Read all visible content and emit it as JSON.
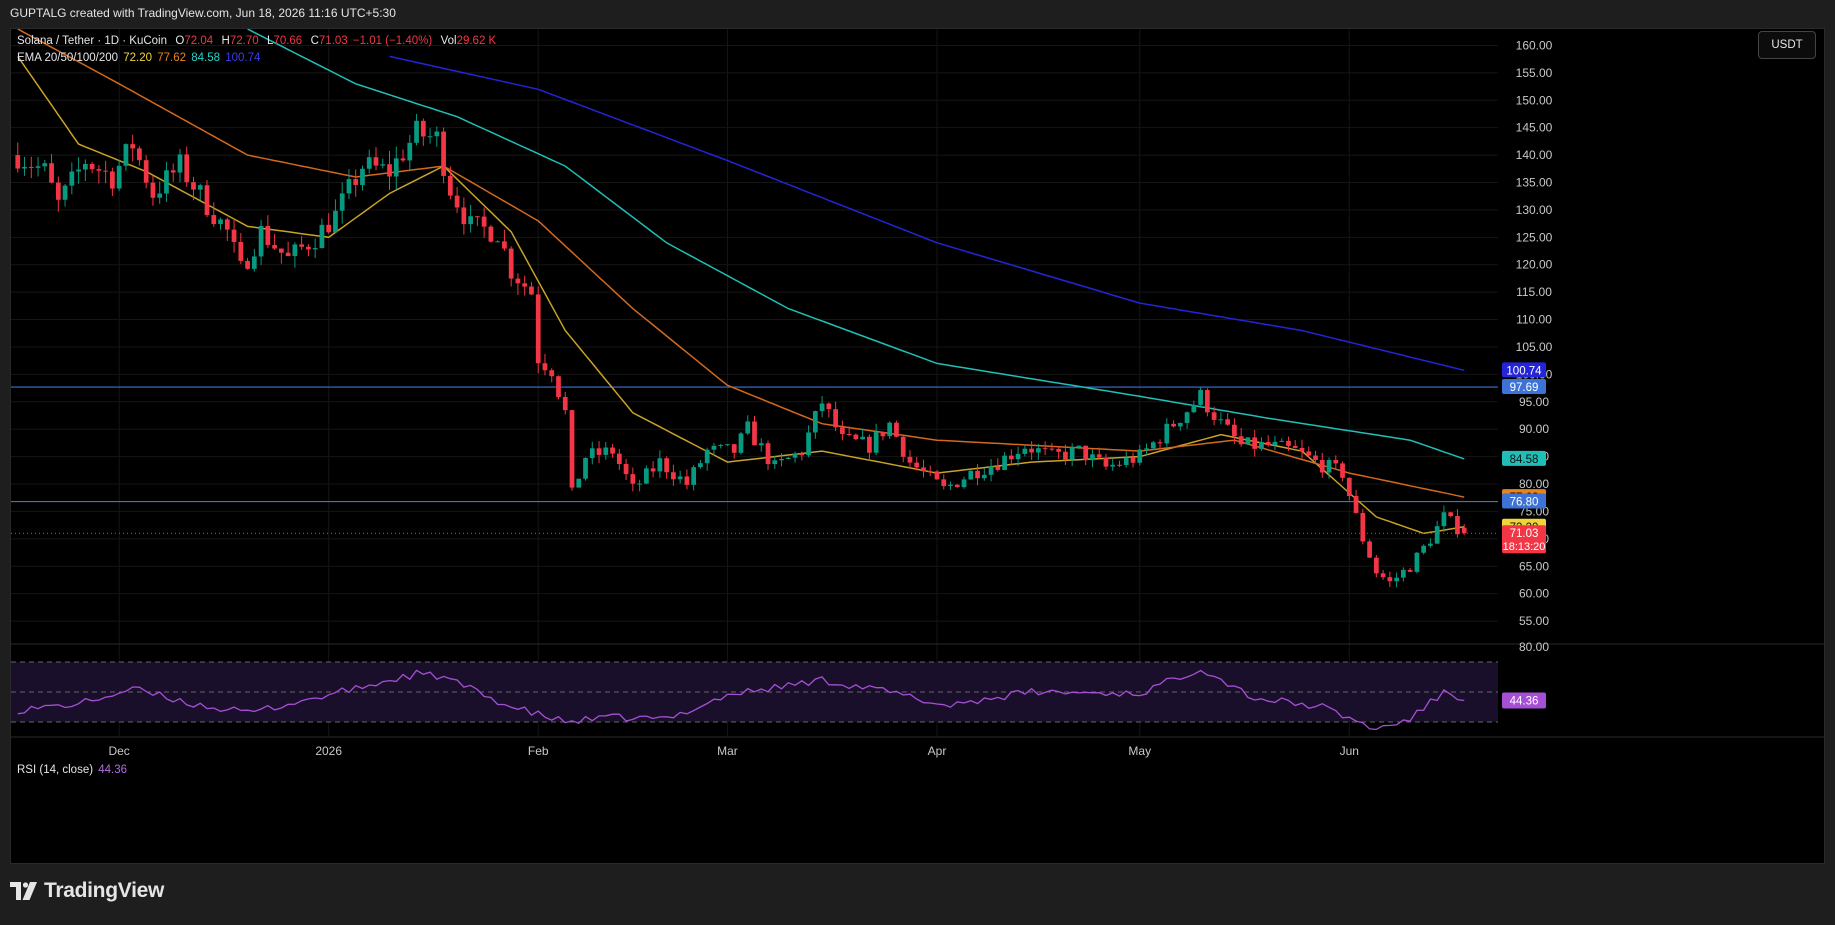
{
  "header": {
    "caption": "GUPTALG created with TradingView.com, Jun 18, 2026 11:16 UTC+5:30"
  },
  "legend": {
    "symbol": "Solana / Tether · 1D · KuCoin",
    "o_label": "O",
    "o_value": "72.04",
    "h_label": "H",
    "h_value": "72.70",
    "l_label": "L",
    "l_value": "70.66",
    "c_label": "C",
    "c_value": "71.03",
    "change": "−1.01 (−1.40%)",
    "vol_label": "Vol",
    "vol_value": "29.62 K",
    "ema_label": "EMA 20/50/100/200",
    "ema20": "72.20",
    "ema50": "77.62",
    "ema100": "84.58",
    "ema200": "100.74",
    "rsi_label": "RSI (14, close)",
    "rsi_value": "44.36"
  },
  "currency_button": "USDT",
  "footer": {
    "brand": "TradingView"
  },
  "colors": {
    "up": "#089981",
    "down": "#f23645",
    "ema20": "#c9a227",
    "ema50": "#d2691e",
    "ema100": "#1fbfb8",
    "ema200": "#2424d8",
    "hline": "#3d72d6",
    "rsi": "#a64fd6"
  },
  "chart_data": {
    "type": "candlestick",
    "symbol": "Solana / Tether",
    "interval": "1D",
    "exchange": "KuCoin",
    "ylim": [
      51,
      163
    ],
    "y_ticks": [
      55,
      60,
      65,
      70,
      75,
      80,
      85,
      90,
      95,
      100,
      105,
      110,
      115,
      120,
      125,
      130,
      135,
      140,
      145,
      150,
      155,
      160
    ],
    "x_range": [
      "2025-11-15",
      "2026-06-23"
    ],
    "x_ticks": [
      {
        "date": "2025-12-01",
        "label": "Dec"
      },
      {
        "date": "2026-01-01",
        "label": "2026"
      },
      {
        "date": "2026-02-01",
        "label": "Feb"
      },
      {
        "date": "2026-03-01",
        "label": "Mar"
      },
      {
        "date": "2026-04-01",
        "label": "Apr"
      },
      {
        "date": "2026-05-01",
        "label": "May"
      },
      {
        "date": "2026-06-01",
        "label": "Jun"
      }
    ],
    "close_anchors": [
      [
        "2025-11-16",
        140
      ],
      [
        "2025-11-20",
        137
      ],
      [
        "2025-11-22",
        131
      ],
      [
        "2025-11-26",
        139
      ],
      [
        "2025-11-30",
        136
      ],
      [
        "2025-12-03",
        142
      ],
      [
        "2025-12-06",
        133
      ],
      [
        "2025-12-10",
        138
      ],
      [
        "2025-12-14",
        131
      ],
      [
        "2025-12-17",
        126
      ],
      [
        "2025-12-19",
        119
      ],
      [
        "2025-12-22",
        126
      ],
      [
        "2025-12-26",
        121
      ],
      [
        "2025-12-30",
        125
      ],
      [
        "2026-01-02",
        129
      ],
      [
        "2026-01-06",
        138
      ],
      [
        "2026-01-10",
        137
      ],
      [
        "2026-01-14",
        144
      ],
      [
        "2026-01-17",
        143
      ],
      [
        "2026-01-19",
        134
      ],
      [
        "2026-01-22",
        127
      ],
      [
        "2026-01-26",
        126
      ],
      [
        "2026-01-28",
        119
      ],
      [
        "2026-01-31",
        115
      ],
      [
        "2026-02-01",
        103
      ],
      [
        "2026-02-03",
        101
      ],
      [
        "2026-02-05",
        93
      ],
      [
        "2026-02-06",
        78
      ],
      [
        "2026-02-08",
        85
      ],
      [
        "2026-02-12",
        86
      ],
      [
        "2026-02-15",
        79
      ],
      [
        "2026-02-19",
        84
      ],
      [
        "2026-02-23",
        80
      ],
      [
        "2026-02-26",
        86
      ],
      [
        "2026-03-02",
        86
      ],
      [
        "2026-03-04",
        90
      ],
      [
        "2026-03-08",
        83
      ],
      [
        "2026-03-12",
        86
      ],
      [
        "2026-03-15",
        95
      ],
      [
        "2026-03-18",
        88
      ],
      [
        "2026-03-22",
        87
      ],
      [
        "2026-03-25",
        91
      ],
      [
        "2026-03-28",
        84
      ],
      [
        "2026-04-02",
        79
      ],
      [
        "2026-04-06",
        82
      ],
      [
        "2026-04-10",
        84
      ],
      [
        "2026-04-14",
        87
      ],
      [
        "2026-04-18",
        85
      ],
      [
        "2026-04-22",
        86
      ],
      [
        "2026-04-26",
        83
      ],
      [
        "2026-05-01",
        85
      ],
      [
        "2026-05-06",
        91
      ],
      [
        "2026-05-10",
        96
      ],
      [
        "2026-05-13",
        91
      ],
      [
        "2026-05-16",
        87
      ],
      [
        "2026-05-20",
        87
      ],
      [
        "2026-05-24",
        86
      ],
      [
        "2026-05-27",
        84
      ],
      [
        "2026-05-31",
        82
      ],
      [
        "2026-06-03",
        70
      ],
      [
        "2026-06-05",
        64
      ],
      [
        "2026-06-07",
        62
      ],
      [
        "2026-06-10",
        65
      ],
      [
        "2026-06-13",
        70
      ],
      [
        "2026-06-15",
        74
      ],
      [
        "2026-06-17",
        72
      ],
      [
        "2026-06-18",
        71.03
      ]
    ],
    "ema_anchors": {
      "ema20": [
        [
          "2025-11-16",
          158
        ],
        [
          "2025-11-25",
          142
        ],
        [
          "2025-12-05",
          137
        ],
        [
          "2025-12-20",
          127
        ],
        [
          "2026-01-01",
          125
        ],
        [
          "2026-01-10",
          133
        ],
        [
          "2026-01-18",
          138
        ],
        [
          "2026-01-28",
          126
        ],
        [
          "2026-02-05",
          108
        ],
        [
          "2026-02-15",
          93
        ],
        [
          "2026-03-01",
          84
        ],
        [
          "2026-03-15",
          86
        ],
        [
          "2026-04-01",
          82
        ],
        [
          "2026-04-15",
          84
        ],
        [
          "2026-05-01",
          85
        ],
        [
          "2026-05-13",
          89
        ],
        [
          "2026-05-25",
          86
        ],
        [
          "2026-06-05",
          74
        ],
        [
          "2026-06-12",
          71
        ],
        [
          "2026-06-18",
          72.2
        ]
      ],
      "ema50": [
        [
          "2025-11-16",
          163
        ],
        [
          "2025-12-01",
          153
        ],
        [
          "2025-12-20",
          140
        ],
        [
          "2026-01-05",
          136
        ],
        [
          "2026-01-18",
          138
        ],
        [
          "2026-02-01",
          128
        ],
        [
          "2026-02-15",
          112
        ],
        [
          "2026-03-01",
          98
        ],
        [
          "2026-03-15",
          91
        ],
        [
          "2026-04-01",
          88
        ],
        [
          "2026-05-01",
          86
        ],
        [
          "2026-05-15",
          88
        ],
        [
          "2026-06-01",
          82
        ],
        [
          "2026-06-18",
          77.62
        ]
      ],
      "ema100": [
        [
          "2025-12-20",
          163
        ],
        [
          "2026-01-05",
          153
        ],
        [
          "2026-01-20",
          147
        ],
        [
          "2026-02-05",
          138
        ],
        [
          "2026-02-20",
          124
        ],
        [
          "2026-03-10",
          112
        ],
        [
          "2026-04-01",
          102
        ],
        [
          "2026-05-01",
          96
        ],
        [
          "2026-05-20",
          92
        ],
        [
          "2026-06-10",
          88
        ],
        [
          "2026-06-18",
          84.58
        ]
      ],
      "ema200": [
        [
          "2026-01-10",
          158
        ],
        [
          "2026-02-01",
          152
        ],
        [
          "2026-03-01",
          139
        ],
        [
          "2026-04-01",
          124
        ],
        [
          "2026-05-01",
          113
        ],
        [
          "2026-05-25",
          108
        ],
        [
          "2026-06-18",
          100.74
        ]
      ]
    },
    "horizontal_lines": [
      97.69,
      76.8
    ],
    "last_price": 71.03,
    "countdown": "18:13:20",
    "price_labels": [
      {
        "value": 100.74,
        "text": "100.74",
        "color": "#2424d8"
      },
      {
        "value": 97.69,
        "text": "97.69",
        "color": "#3d72d6"
      },
      {
        "value": 84.58,
        "text": "84.58",
        "color": "#1fbfb8"
      },
      {
        "value": 77.62,
        "text": "77.62",
        "color": "#e8821e"
      },
      {
        "value": 76.8,
        "text": "76.80",
        "color": "#3d72d6"
      },
      {
        "value": 72.2,
        "text": "72.20",
        "color": "#f0d43a"
      },
      {
        "value": 71.03,
        "text": "71.03",
        "color": "#f23645"
      }
    ],
    "rsi": {
      "period": 14,
      "ylim": [
        20,
        82
      ],
      "y_ticks": [
        80
      ],
      "bands": [
        70,
        50,
        30
      ],
      "last": 44.36,
      "anchors": [
        [
          "2025-11-16",
          38
        ],
        [
          "2025-11-25",
          42
        ],
        [
          "2025-12-03",
          52
        ],
        [
          "2025-12-12",
          42
        ],
        [
          "2025-12-20",
          36
        ],
        [
          "2026-01-01",
          48
        ],
        [
          "2026-01-14",
          62
        ],
        [
          "2026-01-18",
          60
        ],
        [
          "2026-01-28",
          40
        ],
        [
          "2026-02-05",
          30
        ],
        [
          "2026-02-12",
          33
        ],
        [
          "2026-02-20",
          32
        ],
        [
          "2026-03-01",
          48
        ],
        [
          "2026-03-15",
          58
        ],
        [
          "2026-03-25",
          50
        ],
        [
          "2026-04-02",
          41
        ],
        [
          "2026-04-15",
          50
        ],
        [
          "2026-05-01",
          49
        ],
        [
          "2026-05-10",
          66
        ],
        [
          "2026-05-18",
          46
        ],
        [
          "2026-05-28",
          40
        ],
        [
          "2026-06-05",
          25
        ],
        [
          "2026-06-10",
          32
        ],
        [
          "2026-06-15",
          50
        ],
        [
          "2026-06-18",
          44.36
        ]
      ]
    }
  }
}
